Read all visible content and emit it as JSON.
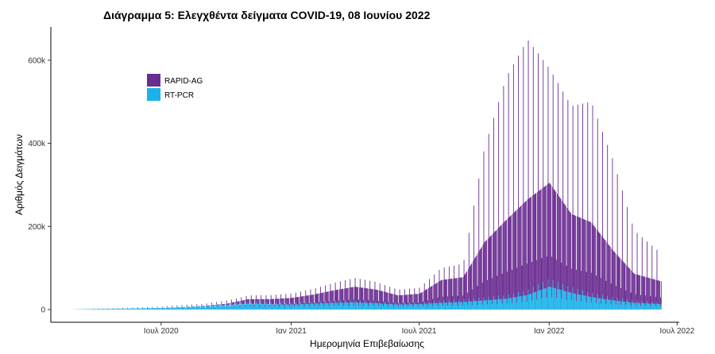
{
  "chart_data": {
    "type": "bar",
    "title": "Διάγραμμα 5: Ελεγχθέντα δείγματα COVID-19, 08 Ιουνίου 2022",
    "xlabel": "Ημερομηνία Επιβεβαίωσης",
    "ylabel": "Αριθμός Δειγμάτων",
    "stacked": true,
    "x_range": [
      "2020-02-26",
      "2022-06-08"
    ],
    "ylim": [
      0,
      680000
    ],
    "grid": false,
    "legend_position": "top-left",
    "y_ticks": [
      {
        "value": 0,
        "label": "0"
      },
      {
        "value": 200000,
        "label": "200k"
      },
      {
        "value": 400000,
        "label": "400k"
      },
      {
        "value": 600000,
        "label": "600k"
      }
    ],
    "x_ticks": [
      {
        "date": "2020-07-01",
        "label": "Ιουλ 2020"
      },
      {
        "date": "2021-01-01",
        "label": "Ιαν 2021"
      },
      {
        "date": "2021-07-01",
        "label": "Ιουλ 2021"
      },
      {
        "date": "2022-01-01",
        "label": "Ιαν 2022"
      },
      {
        "date": "2022-07-01",
        "label": "Ιουλ 2022"
      }
    ],
    "series": [
      {
        "name": "RT-PCR",
        "color": "#1ab2e8"
      },
      {
        "name": "RAPID-AG",
        "color": "#6a2c91"
      }
    ],
    "weekly_profile": [
      {
        "date": "2020-02-26",
        "rt_pcr": 200,
        "rapid_ag": 0,
        "weekly_peak": 300
      },
      {
        "date": "2020-04-01",
        "rt_pcr": 1500,
        "rapid_ag": 0,
        "weekly_peak": 2500
      },
      {
        "date": "2020-05-01",
        "rt_pcr": 2000,
        "rapid_ag": 0,
        "weekly_peak": 3500
      },
      {
        "date": "2020-06-01",
        "rt_pcr": 3000,
        "rapid_ag": 0,
        "weekly_peak": 5500
      },
      {
        "date": "2020-07-01",
        "rt_pcr": 4000,
        "rapid_ag": 0,
        "weekly_peak": 7000
      },
      {
        "date": "2020-08-01",
        "rt_pcr": 6000,
        "rapid_ag": 0,
        "weekly_peak": 11000
      },
      {
        "date": "2020-09-01",
        "rt_pcr": 8000,
        "rapid_ag": 1000,
        "weekly_peak": 14000
      },
      {
        "date": "2020-10-01",
        "rt_pcr": 11000,
        "rapid_ag": 3000,
        "weekly_peak": 22000
      },
      {
        "date": "2020-11-01",
        "rt_pcr": 14000,
        "rapid_ag": 11000,
        "weekly_peak": 32000
      },
      {
        "date": "2020-12-01",
        "rt_pcr": 13000,
        "rapid_ag": 12000,
        "weekly_peak": 33000
      },
      {
        "date": "2021-01-01",
        "rt_pcr": 12000,
        "rapid_ag": 16000,
        "weekly_peak": 38000
      },
      {
        "date": "2021-02-01",
        "rt_pcr": 14000,
        "rapid_ag": 22000,
        "weekly_peak": 50000
      },
      {
        "date": "2021-03-01",
        "rt_pcr": 16000,
        "rapid_ag": 30000,
        "weekly_peak": 62000
      },
      {
        "date": "2021-04-01",
        "rt_pcr": 17000,
        "rapid_ag": 38000,
        "weekly_peak": 72000
      },
      {
        "date": "2021-05-01",
        "rt_pcr": 15000,
        "rapid_ag": 33000,
        "weekly_peak": 65000
      },
      {
        "date": "2021-06-01",
        "rt_pcr": 12000,
        "rapid_ag": 22000,
        "weekly_peak": 48000
      },
      {
        "date": "2021-07-01",
        "rt_pcr": 13000,
        "rapid_ag": 25000,
        "weekly_peak": 52000
      },
      {
        "date": "2021-08-01",
        "rt_pcr": 16000,
        "rapid_ag": 55000,
        "weekly_peak": 100000
      },
      {
        "date": "2021-09-01",
        "rt_pcr": 18000,
        "rapid_ag": 60000,
        "weekly_peak": 110000
      },
      {
        "date": "2021-10-01",
        "rt_pcr": 22000,
        "rapid_ag": 140000,
        "weekly_peak": 390000
      },
      {
        "date": "2021-11-01",
        "rt_pcr": 26000,
        "rapid_ag": 190000,
        "weekly_peak": 560000
      },
      {
        "date": "2021-12-01",
        "rt_pcr": 35000,
        "rapid_ag": 230000,
        "weekly_peak": 650000
      },
      {
        "date": "2022-01-01",
        "rt_pcr": 55000,
        "rapid_ag": 250000,
        "weekly_peak": 580000
      },
      {
        "date": "2022-02-01",
        "rt_pcr": 40000,
        "rapid_ag": 190000,
        "weekly_peak": 490000
      },
      {
        "date": "2022-03-01",
        "rt_pcr": 30000,
        "rapid_ag": 180000,
        "weekly_peak": 500000
      },
      {
        "date": "2022-04-01",
        "rt_pcr": 22000,
        "rapid_ag": 120000,
        "weekly_peak": 360000
      },
      {
        "date": "2022-05-01",
        "rt_pcr": 16000,
        "rapid_ag": 70000,
        "weekly_peak": 190000
      },
      {
        "date": "2022-06-08",
        "rt_pcr": 13000,
        "rapid_ag": 55000,
        "weekly_peak": 135000
      }
    ]
  }
}
